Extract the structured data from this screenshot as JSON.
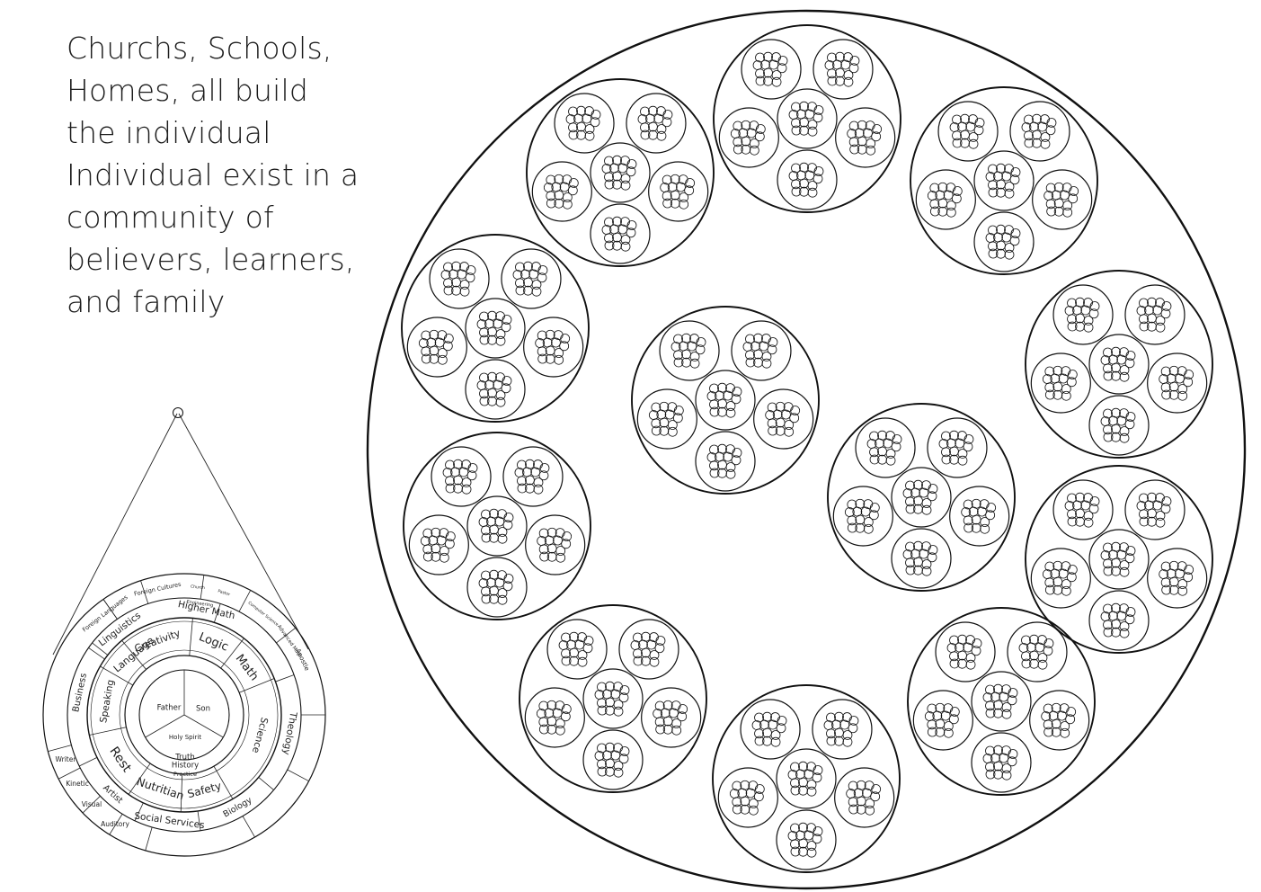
{
  "caption": {
    "lines": [
      "Churchs, Schools,",
      "Homes, all build",
      "the individual",
      "Individual exist in a",
      "community of",
      "believers, learners,",
      "and family"
    ]
  },
  "community": {
    "groups": 12,
    "families_per_group": 6,
    "members_per_family": 12
  },
  "wheel": {
    "center": {
      "labels": [
        "Father",
        "Son",
        "Holy Spirit"
      ],
      "foundations": [
        "Truth",
        "History",
        "Practice"
      ]
    },
    "inner_ring": [
      "Creativity",
      "Logic",
      "Math",
      "Science",
      "Safety",
      "Nutritian",
      "Rest",
      "Speaking",
      "Language"
    ],
    "middle_ring": [
      "Linguistics",
      "Higher Math",
      "Theology",
      "Biology",
      "Social Services",
      "Artist",
      "Business"
    ],
    "middle_ring_extra": [
      "Apostle",
      "Engineering"
    ],
    "outer_ring": [
      "Foreign Languages",
      "Foreign Cultures",
      "Church",
      "Pastor",
      "Computer Science",
      "Advanced Math",
      "Writer",
      "Kinetic",
      "Visual",
      "Auditory"
    ]
  }
}
